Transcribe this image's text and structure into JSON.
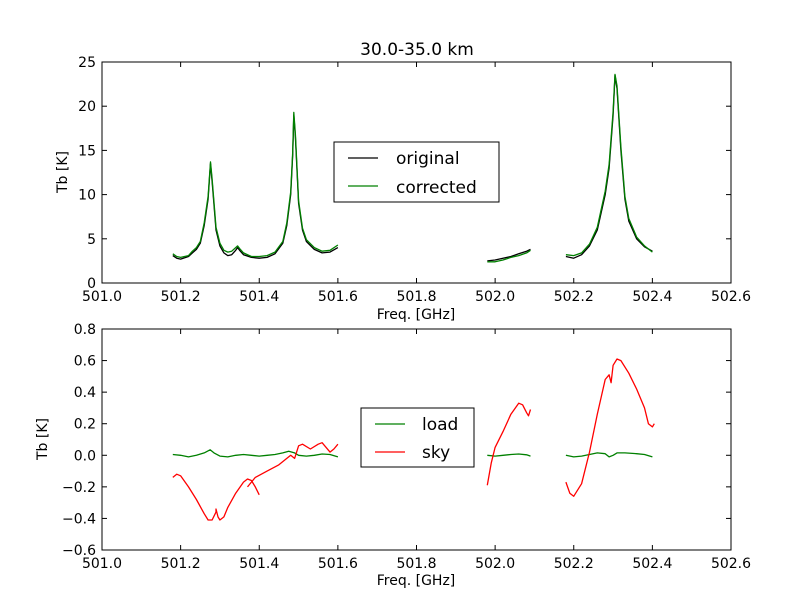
{
  "chart_data": [
    {
      "type": "line",
      "title": "30.0-35.0 km",
      "xlabel": "Freq. [GHz]",
      "ylabel": "Tb [K]",
      "xlim": [
        501.0,
        502.6
      ],
      "ylim": [
        0,
        25
      ],
      "xticks": [
        "501.0",
        "501.2",
        "501.4",
        "501.6",
        "501.8",
        "502.0",
        "502.2",
        "502.4",
        "502.6"
      ],
      "yticks": [
        "0",
        "5",
        "10",
        "15",
        "20",
        "25"
      ],
      "legend_position": "center",
      "series": [
        {
          "name": "original",
          "color": "#000000",
          "segments": [
            [
              [
                501.18,
                3.1
              ],
              [
                501.19,
                2.8
              ],
              [
                501.2,
                2.7
              ],
              [
                501.22,
                3.0
              ],
              [
                501.23,
                3.4
              ],
              [
                501.24,
                3.8
              ],
              [
                501.25,
                4.5
              ],
              [
                501.26,
                6.5
              ],
              [
                501.27,
                9.5
              ],
              [
                501.276,
                13.5
              ],
              [
                501.28,
                11.5
              ],
              [
                501.29,
                6.0
              ],
              [
                501.3,
                4.2
              ],
              [
                501.31,
                3.4
              ],
              [
                501.32,
                3.1
              ],
              [
                501.33,
                3.2
              ],
              [
                501.34,
                3.7
              ],
              [
                501.345,
                4.0
              ],
              [
                501.35,
                3.7
              ],
              [
                501.36,
                3.2
              ],
              [
                501.38,
                2.9
              ],
              [
                501.4,
                2.8
              ],
              [
                501.42,
                2.9
              ],
              [
                501.44,
                3.3
              ],
              [
                501.46,
                4.5
              ],
              [
                501.47,
                6.5
              ],
              [
                501.48,
                10.0
              ],
              [
                501.485,
                14.5
              ],
              [
                501.488,
                19.0
              ],
              [
                501.492,
                16.5
              ],
              [
                501.5,
                9.0
              ],
              [
                501.51,
                6.0
              ],
              [
                501.52,
                4.7
              ],
              [
                501.54,
                3.8
              ],
              [
                501.56,
                3.4
              ],
              [
                501.58,
                3.5
              ],
              [
                501.6,
                4.0
              ]
            ],
            [
              [
                501.98,
                2.5
              ],
              [
                502.0,
                2.6
              ],
              [
                502.02,
                2.8
              ],
              [
                502.04,
                3.0
              ],
              [
                502.06,
                3.3
              ],
              [
                502.08,
                3.6
              ],
              [
                502.09,
                3.8
              ]
            ],
            [
              [
                502.18,
                3.0
              ],
              [
                502.2,
                2.8
              ],
              [
                502.22,
                3.2
              ],
              [
                502.24,
                4.2
              ],
              [
                502.26,
                6.0
              ],
              [
                502.28,
                10.0
              ],
              [
                502.29,
                13.0
              ],
              [
                502.3,
                19.0
              ],
              [
                502.305,
                23.5
              ],
              [
                502.31,
                22.0
              ],
              [
                502.32,
                15.0
              ],
              [
                502.33,
                9.5
              ],
              [
                502.34,
                7.0
              ],
              [
                502.36,
                5.0
              ],
              [
                502.38,
                4.1
              ],
              [
                502.4,
                3.6
              ]
            ]
          ]
        },
        {
          "name": "corrected",
          "color": "#008000",
          "segments": [
            [
              [
                501.18,
                3.3
              ],
              [
                501.19,
                3.0
              ],
              [
                501.2,
                2.9
              ],
              [
                501.22,
                3.1
              ],
              [
                501.23,
                3.6
              ],
              [
                501.24,
                4.0
              ],
              [
                501.25,
                4.7
              ],
              [
                501.26,
                6.8
              ],
              [
                501.27,
                9.8
              ],
              [
                501.276,
                13.7
              ],
              [
                501.28,
                11.8
              ],
              [
                501.29,
                6.3
              ],
              [
                501.3,
                4.5
              ],
              [
                501.31,
                3.7
              ],
              [
                501.32,
                3.5
              ],
              [
                501.33,
                3.6
              ],
              [
                501.34,
                4.0
              ],
              [
                501.345,
                4.2
              ],
              [
                501.35,
                3.9
              ],
              [
                501.36,
                3.4
              ],
              [
                501.38,
                3.0
              ],
              [
                501.4,
                3.0
              ],
              [
                501.42,
                3.1
              ],
              [
                501.44,
                3.5
              ],
              [
                501.46,
                4.7
              ],
              [
                501.47,
                6.8
              ],
              [
                501.48,
                10.3
              ],
              [
                501.485,
                14.8
              ],
              [
                501.488,
                19.3
              ],
              [
                501.492,
                16.8
              ],
              [
                501.5,
                9.3
              ],
              [
                501.51,
                6.2
              ],
              [
                501.52,
                4.9
              ],
              [
                501.54,
                4.0
              ],
              [
                501.56,
                3.6
              ],
              [
                501.58,
                3.7
              ],
              [
                501.6,
                4.3
              ]
            ],
            [
              [
                501.98,
                2.4
              ],
              [
                502.0,
                2.4
              ],
              [
                502.02,
                2.6
              ],
              [
                502.04,
                2.9
              ],
              [
                502.06,
                3.1
              ],
              [
                502.08,
                3.4
              ],
              [
                502.09,
                3.7
              ]
            ],
            [
              [
                502.18,
                3.2
              ],
              [
                502.2,
                3.1
              ],
              [
                502.22,
                3.4
              ],
              [
                502.24,
                4.4
              ],
              [
                502.26,
                6.3
              ],
              [
                502.28,
                10.4
              ],
              [
                502.29,
                13.4
              ],
              [
                502.3,
                19.4
              ],
              [
                502.305,
                23.6
              ],
              [
                502.31,
                22.3
              ],
              [
                502.32,
                15.4
              ],
              [
                502.33,
                9.8
              ],
              [
                502.34,
                7.3
              ],
              [
                502.36,
                5.2
              ],
              [
                502.38,
                4.2
              ],
              [
                502.4,
                3.5
              ]
            ]
          ]
        }
      ]
    },
    {
      "type": "line",
      "title": "",
      "xlabel": "Freq. [GHz]",
      "ylabel": "Tb [K]",
      "xlim": [
        501.0,
        502.6
      ],
      "ylim": [
        -0.6,
        0.8
      ],
      "xticks": [
        "501.0",
        "501.2",
        "501.4",
        "501.6",
        "501.8",
        "502.0",
        "502.2",
        "502.4",
        "502.6"
      ],
      "yticks": [
        "−0.6",
        "−0.4",
        "−0.2",
        "0.0",
        "0.2",
        "0.4",
        "0.6",
        "0.8"
      ],
      "legend_position": "center",
      "series": [
        {
          "name": "load",
          "color": "#008000",
          "segments": [
            [
              [
                501.18,
                0.005
              ],
              [
                501.2,
                0.0
              ],
              [
                501.22,
                -0.01
              ],
              [
                501.24,
                0.0
              ],
              [
                501.26,
                0.015
              ],
              [
                501.275,
                0.035
              ],
              [
                501.285,
                0.015
              ],
              [
                501.3,
                -0.005
              ],
              [
                501.32,
                -0.01
              ],
              [
                501.34,
                0.0
              ],
              [
                501.36,
                0.005
              ],
              [
                501.38,
                0.0
              ],
              [
                501.4,
                -0.005
              ],
              [
                501.42,
                0.0
              ],
              [
                501.44,
                0.005
              ],
              [
                501.46,
                0.015
              ],
              [
                501.475,
                0.025
              ],
              [
                501.49,
                0.015
              ],
              [
                501.5,
                0.0
              ],
              [
                501.52,
                -0.005
              ],
              [
                501.54,
                0.0
              ],
              [
                501.56,
                0.008
              ],
              [
                501.58,
                0.005
              ],
              [
                501.6,
                -0.01
              ]
            ],
            [
              [
                501.98,
                0.0
              ],
              [
                502.0,
                -0.005
              ],
              [
                502.02,
                0.0
              ],
              [
                502.04,
                0.005
              ],
              [
                502.06,
                0.008
              ],
              [
                502.08,
                0.003
              ],
              [
                502.09,
                -0.005
              ]
            ],
            [
              [
                502.18,
                0.0
              ],
              [
                502.2,
                -0.01
              ],
              [
                502.22,
                -0.005
              ],
              [
                502.24,
                0.005
              ],
              [
                502.26,
                0.015
              ],
              [
                502.28,
                0.01
              ],
              [
                502.29,
                -0.01
              ],
              [
                502.3,
                0.0
              ],
              [
                502.31,
                0.015
              ],
              [
                502.33,
                0.015
              ],
              [
                502.36,
                0.01
              ],
              [
                502.38,
                0.005
              ],
              [
                502.4,
                -0.01
              ]
            ]
          ]
        },
        {
          "name": "sky",
          "color": "#ff0000",
          "segments": [
            [
              [
                501.18,
                -0.14
              ],
              [
                501.19,
                -0.12
              ],
              [
                501.2,
                -0.13
              ],
              [
                501.22,
                -0.2
              ],
              [
                501.24,
                -0.28
              ],
              [
                501.26,
                -0.37
              ],
              [
                501.27,
                -0.41
              ],
              [
                501.28,
                -0.41
              ],
              [
                501.29,
                -0.36
              ],
              [
                501.29,
                -0.34
              ],
              [
                501.295,
                -0.39
              ],
              [
                501.3,
                -0.41
              ],
              [
                501.31,
                -0.39
              ],
              [
                501.32,
                -0.33
              ],
              [
                501.34,
                -0.24
              ],
              [
                501.36,
                -0.17
              ],
              [
                501.37,
                -0.15
              ],
              [
                501.38,
                -0.16
              ],
              [
                501.39,
                -0.2
              ],
              [
                501.4,
                -0.25
              ]
            ],
            [
              [
                501.37,
                -0.2
              ],
              [
                501.39,
                -0.14
              ],
              [
                501.42,
                -0.1
              ],
              [
                501.45,
                -0.06
              ],
              [
                501.47,
                -0.02
              ],
              [
                501.48,
                0.0
              ],
              [
                501.49,
                -0.02
              ],
              [
                501.5,
                0.06
              ],
              [
                501.51,
                0.07
              ],
              [
                501.53,
                0.04
              ],
              [
                501.55,
                0.07
              ],
              [
                501.56,
                0.08
              ],
              [
                501.57,
                0.05
              ],
              [
                501.58,
                0.02
              ],
              [
                501.59,
                0.04
              ],
              [
                501.6,
                0.07
              ]
            ],
            [
              [
                501.98,
                -0.19
              ],
              [
                501.99,
                -0.05
              ],
              [
                502.0,
                0.05
              ],
              [
                502.02,
                0.15
              ],
              [
                502.04,
                0.26
              ],
              [
                502.06,
                0.33
              ],
              [
                502.07,
                0.32
              ],
              [
                502.08,
                0.27
              ],
              [
                502.085,
                0.25
              ],
              [
                502.09,
                0.29
              ]
            ],
            [
              [
                502.18,
                -0.17
              ],
              [
                502.19,
                -0.24
              ],
              [
                502.2,
                -0.26
              ],
              [
                502.22,
                -0.18
              ],
              [
                502.24,
                0.02
              ],
              [
                502.26,
                0.26
              ],
              [
                502.28,
                0.48
              ],
              [
                502.29,
                0.51
              ],
              [
                502.295,
                0.46
              ],
              [
                502.3,
                0.57
              ],
              [
                502.31,
                0.61
              ],
              [
                502.32,
                0.6
              ],
              [
                502.34,
                0.52
              ],
              [
                502.36,
                0.42
              ],
              [
                502.38,
                0.3
              ],
              [
                502.39,
                0.2
              ],
              [
                502.4,
                0.18
              ],
              [
                502.405,
                0.2
              ]
            ]
          ]
        }
      ]
    }
  ]
}
